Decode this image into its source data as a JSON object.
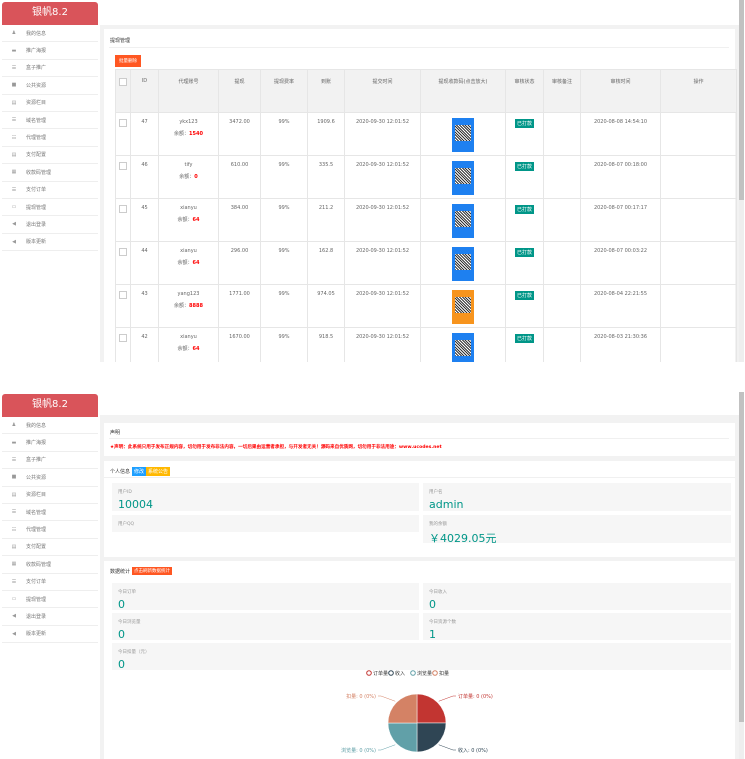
{
  "brand": "银帆8.2",
  "sidebar": [
    {
      "icon": "user-icon",
      "label": "我的信息"
    },
    {
      "icon": "image-icon",
      "label": "推广海报"
    },
    {
      "icon": "box-icon",
      "label": "盒子推广"
    },
    {
      "icon": "video-icon",
      "label": "公共资源"
    },
    {
      "icon": "list-icon",
      "label": "资源栏目"
    },
    {
      "icon": "globe-icon",
      "label": "域名管理"
    },
    {
      "icon": "users-icon",
      "label": "代理管理"
    },
    {
      "icon": "card-icon",
      "label": "支付配置"
    },
    {
      "icon": "qrcode-icon",
      "label": "收款码管理"
    },
    {
      "icon": "order-icon",
      "label": "支付订单"
    },
    {
      "icon": "withdraw-icon",
      "label": "提现管理"
    },
    {
      "icon": "logout-icon",
      "label": "退出登录"
    },
    {
      "icon": "update-icon",
      "label": "版本更新"
    }
  ],
  "withdraw": {
    "title": "提现管理",
    "batch_delete": "批量删除",
    "columns": [
      "ID",
      "代理账号",
      "提现",
      "提现费率",
      "到账",
      "提交时间",
      "提现收款码(点击放大)",
      "审核状态",
      "审核备注",
      "审核时间",
      "操作"
    ],
    "balance_label": "余额：",
    "rows": [
      {
        "id": "47",
        "account": "ykx123",
        "balance": "1540",
        "amount": "3472.00",
        "rate": "99%",
        "received": "1909.6",
        "submitted": "2020-09-30 12:01:52",
        "qr": "blue",
        "status": "已打款",
        "note": "",
        "reviewed": "2020-08-08 14:54:10"
      },
      {
        "id": "46",
        "account": "tify",
        "balance": "0",
        "amount": "610.00",
        "rate": "99%",
        "received": "335.5",
        "submitted": "2020-09-30 12:01:52",
        "qr": "blue",
        "status": "已打款",
        "note": "",
        "reviewed": "2020-08-07 00:18:00"
      },
      {
        "id": "45",
        "account": "xianyu",
        "balance": "64",
        "amount": "384.00",
        "rate": "99%",
        "received": "211.2",
        "submitted": "2020-09-30 12:01:52",
        "qr": "blue",
        "status": "已打款",
        "note": "",
        "reviewed": "2020-08-07 00:17:17"
      },
      {
        "id": "44",
        "account": "xianyu",
        "balance": "64",
        "amount": "296.00",
        "rate": "99%",
        "received": "162.8",
        "submitted": "2020-09-30 12:01:52",
        "qr": "blue",
        "status": "已打款",
        "note": "",
        "reviewed": "2020-08-07 00:03:22"
      },
      {
        "id": "43",
        "account": "yang123",
        "balance": "8888",
        "amount": "1771.00",
        "rate": "99%",
        "received": "974.05",
        "submitted": "2020-09-30 12:01:52",
        "qr": "orange",
        "status": "已打款",
        "note": "",
        "reviewed": "2020-08-04 22:21:55"
      },
      {
        "id": "42",
        "account": "xianyu",
        "balance": "64",
        "amount": "1670.00",
        "rate": "99%",
        "received": "918.5",
        "submitted": "2020-09-30 12:01:52",
        "qr": "blue",
        "status": "已打款",
        "note": "",
        "reviewed": "2020-08-03 21:30:36"
      }
    ]
  },
  "dashboard": {
    "notice_title": "声明",
    "notice_text": "★声明：此系统只用于发布正规内容，切勿用于发布非法内容，一切后果由运营者承担，与开发者无关！源码来自优质网，切勿用于非法用途：www.ucodes.net",
    "profile_title": "个人信息",
    "edit_tag": "修改",
    "notice_tag": "系统公告",
    "user_id_label": "用户ID",
    "user_id": "10004",
    "username_label": "用户名",
    "username": "admin",
    "qq_label": "用户QQ",
    "qq": "",
    "balance_label": "我的余额",
    "balance": "￥4029.05元",
    "stats_title": "数据统计",
    "refresh": "点击刷新数据统计",
    "stats": [
      {
        "label": "今日订单",
        "value": "0"
      },
      {
        "label": "今日收入",
        "value": "0"
      },
      {
        "label": "今日浏览量",
        "value": "0"
      },
      {
        "label": "今日资源个数",
        "value": "1"
      },
      {
        "label": "今日扣量（元）",
        "value": "0"
      }
    ]
  },
  "chart_data": {
    "type": "pie",
    "legend": [
      "订单量",
      "收入",
      "浏览量",
      "扣量"
    ],
    "legend_position": "top",
    "values": [
      0,
      0,
      0,
      0
    ],
    "labels": [
      "订单量: 0 (0%)",
      "收入: 0 (0%)",
      "浏览量: 0 (0%)",
      "扣量: 0 (0%)"
    ],
    "colors": [
      "#c23531",
      "#2f4554",
      "#61a0a8",
      "#d48265"
    ]
  }
}
